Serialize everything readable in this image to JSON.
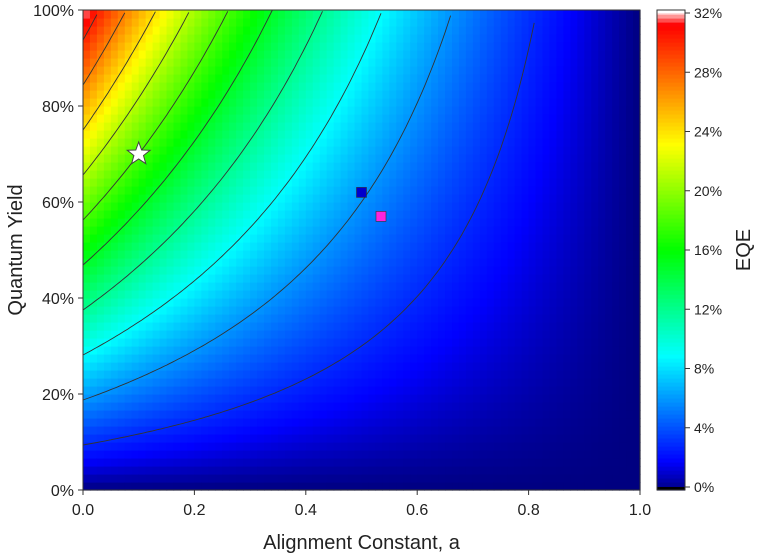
{
  "chart_data": {
    "type": "heatmap",
    "title": "",
    "xlabel": "Alignment Constant, a",
    "ylabel": "Quantum Yield",
    "colorbar_label": "EQE",
    "xlim": [
      0,
      1
    ],
    "ylim": [
      0,
      100
    ],
    "x_ticks": [
      "0.0",
      "0.2",
      "0.4",
      "0.6",
      "0.8",
      "1.0"
    ],
    "x_tick_values": [
      0,
      0.2,
      0.4,
      0.6,
      0.8,
      1.0
    ],
    "y_ticks": [
      "0%",
      "20%",
      "40%",
      "60%",
      "80%",
      "100%"
    ],
    "y_tick_values": [
      0,
      20,
      40,
      60,
      80,
      100
    ],
    "colorbar_range": [
      0,
      32
    ],
    "colorbar_ticks": [
      "0%",
      "4%",
      "8%",
      "12%",
      "16%",
      "20%",
      "24%",
      "28%",
      "32%"
    ],
    "colorbar_tick_values": [
      0,
      4,
      8,
      12,
      16,
      20,
      24,
      28,
      32
    ],
    "colormap": [
      "#000080",
      "#0000ff",
      "#00ffff",
      "#00ff00",
      "#ffff00",
      "#ff0000",
      "#ffffff"
    ],
    "contour_levels": [
      3,
      6,
      9,
      12,
      15,
      18,
      21,
      24,
      27,
      30
    ],
    "grid": false,
    "markers": [
      {
        "shape": "star",
        "x": 0.1,
        "y": 70,
        "color": "#ffffff"
      },
      {
        "shape": "square",
        "x": 0.5,
        "y": 62,
        "color": "#0000cc"
      },
      {
        "shape": "square",
        "x": 0.535,
        "y": 57,
        "color": "#ff22dd"
      }
    ]
  }
}
